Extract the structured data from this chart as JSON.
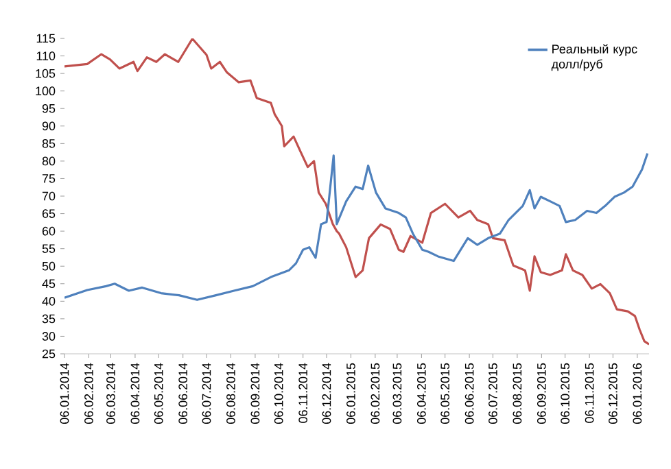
{
  "chart_data": {
    "type": "line",
    "legend": "top right",
    "grid": false,
    "marker": "none",
    "line_style": "solid",
    "ylim": [
      25,
      115
    ],
    "yticks": [
      25,
      30,
      35,
      40,
      45,
      50,
      55,
      60,
      65,
      70,
      75,
      80,
      85,
      90,
      95,
      100,
      105,
      110,
      115
    ],
    "xlim": [
      "2014-01-06",
      "2016-01-21"
    ],
    "xticks": [
      {
        "value": "2014-01-06",
        "label": "06.01.2014"
      },
      {
        "value": "2014-02-06",
        "label": "06.02.2014"
      },
      {
        "value": "2014-03-06",
        "label": "06.03.2014"
      },
      {
        "value": "2014-04-06",
        "label": "06.04.2014"
      },
      {
        "value": "2014-05-06",
        "label": "06.05.2014"
      },
      {
        "value": "2014-06-06",
        "label": "06.06.2014"
      },
      {
        "value": "2014-07-06",
        "label": "06.07.2014"
      },
      {
        "value": "2014-08-06",
        "label": "06.08.2014"
      },
      {
        "value": "2014-09-06",
        "label": "06.09.2014"
      },
      {
        "value": "2014-10-06",
        "label": "06.10.2014"
      },
      {
        "value": "2014-11-06",
        "label": "06.11.2014"
      },
      {
        "value": "2014-12-06",
        "label": "06.12.2014"
      },
      {
        "value": "2015-01-06",
        "label": "06.01.2015"
      },
      {
        "value": "2015-02-06",
        "label": "06.02.2015"
      },
      {
        "value": "2015-03-06",
        "label": "06.03.2015"
      },
      {
        "value": "2015-04-06",
        "label": "06.04.2015"
      },
      {
        "value": "2015-05-06",
        "label": "06.05.2015"
      },
      {
        "value": "2015-06-06",
        "label": "06.06.2015"
      },
      {
        "value": "2015-07-06",
        "label": "06.07.2015"
      },
      {
        "value": "2015-08-06",
        "label": "06.08.2015"
      },
      {
        "value": "2015-09-06",
        "label": "06.09.2015"
      },
      {
        "value": "2015-10-06",
        "label": "06.10.2015"
      },
      {
        "value": "2015-11-06",
        "label": "06.11.2015"
      },
      {
        "value": "2015-12-06",
        "label": "06.12.2015"
      },
      {
        "value": "2016-01-06",
        "label": "06.01.2016"
      }
    ],
    "series": [
      {
        "color": "#c0504d",
        "x": [
          "2014-01-06",
          "2014-02-04",
          "2014-02-22",
          "2014-03-05",
          "2014-03-17",
          "2014-04-04",
          "2014-04-09",
          "2014-04-21",
          "2014-05-03",
          "2014-05-14",
          "2014-05-31",
          "2014-06-18",
          "2014-07-06",
          "2014-07-12",
          "2014-07-23",
          "2014-08-01",
          "2014-08-16",
          "2014-08-31",
          "2014-09-08",
          "2014-09-26",
          "2014-10-01",
          "2014-10-10",
          "2014-10-13",
          "2014-10-25",
          "2014-11-03",
          "2014-11-12",
          "2014-11-20",
          "2014-11-26",
          "2014-12-05",
          "2014-12-14",
          "2014-12-19",
          "2014-12-22",
          "2014-12-31",
          "2015-01-12",
          "2015-01-21",
          "2015-01-29",
          "2015-02-13",
          "2015-02-25",
          "2015-03-08",
          "2015-03-14",
          "2015-03-23",
          "2015-04-07",
          "2015-04-18",
          "2015-05-06",
          "2015-05-23",
          "2015-06-07",
          "2015-06-16",
          "2015-06-30",
          "2015-07-06",
          "2015-07-21",
          "2015-08-01",
          "2015-08-16",
          "2015-08-22",
          "2015-08-28",
          "2015-09-05",
          "2015-09-17",
          "2015-10-02",
          "2015-10-07",
          "2015-10-16",
          "2015-10-28",
          "2015-11-09",
          "2015-11-20",
          "2015-12-02",
          "2015-12-11",
          "2015-12-25",
          "2016-01-03",
          "2016-01-09",
          "2016-01-15",
          "2016-01-21"
        ],
        "values": [
          107,
          107.7,
          110.5,
          109,
          106.4,
          108.3,
          105.7,
          109.6,
          108.3,
          110.5,
          108.3,
          114.9,
          110.3,
          106.4,
          108.3,
          105.3,
          102.5,
          103,
          98,
          96.6,
          93.3,
          90,
          84.2,
          87,
          82.6,
          78.3,
          80,
          71,
          67.8,
          62,
          60,
          59.3,
          55.4,
          46.9,
          48.8,
          58,
          61.9,
          60.6,
          54.7,
          54.1,
          58.6,
          56.7,
          65.2,
          67.8,
          63.9,
          65.8,
          63.2,
          62,
          58,
          57.4,
          50.2,
          48.8,
          43,
          52.8,
          48.3,
          47.5,
          48.8,
          53.4,
          48.8,
          47.5,
          43.6,
          44.9,
          42.3,
          37.7,
          37.1,
          35.8,
          31.9,
          28.6,
          27.7
        ]
      },
      {
        "name": "Реальный курс долл/руб",
        "color": "#4f81bd",
        "x": [
          "2014-01-06",
          "2014-02-04",
          "2014-02-28",
          "2014-03-11",
          "2014-03-29",
          "2014-04-15",
          "2014-05-09",
          "2014-06-01",
          "2014-06-24",
          "2014-07-18",
          "2014-08-10",
          "2014-09-03",
          "2014-09-26",
          "2014-10-19",
          "2014-10-28",
          "2014-11-06",
          "2014-11-14",
          "2014-11-22",
          "2014-11-29",
          "2014-12-06",
          "2014-12-15",
          "2014-12-19",
          "2014-12-31",
          "2015-01-12",
          "2015-01-21",
          "2015-01-28",
          "2015-02-07",
          "2015-02-19",
          "2015-03-08",
          "2015-03-17",
          "2015-03-26",
          "2015-04-07",
          "2015-04-15",
          "2015-04-27",
          "2015-05-17",
          "2015-06-04",
          "2015-06-16",
          "2015-06-30",
          "2015-07-15",
          "2015-07-26",
          "2015-08-13",
          "2015-08-22",
          "2015-08-28",
          "2015-09-05",
          "2015-09-17",
          "2015-09-29",
          "2015-10-07",
          "2015-10-19",
          "2015-11-03",
          "2015-11-15",
          "2015-11-26",
          "2015-12-08",
          "2015-12-20",
          "2015-12-31",
          "2016-01-12",
          "2016-01-19"
        ],
        "values": [
          41,
          43.2,
          44.3,
          45,
          43,
          43.9,
          42.3,
          41.7,
          40.4,
          41.7,
          43,
          44.3,
          46.9,
          48.8,
          50.8,
          54.7,
          55.4,
          52.4,
          62,
          62.6,
          81.6,
          62,
          68.5,
          72.7,
          72,
          78.7,
          71,
          66.5,
          65.2,
          63.9,
          59.3,
          54.7,
          54.1,
          52.8,
          51.5,
          58,
          56.1,
          58,
          59.3,
          63.2,
          67.2,
          71.7,
          66.5,
          69.8,
          68.5,
          67.2,
          62.6,
          63.2,
          65.8,
          65.2,
          67.2,
          69.8,
          71,
          72.7,
          77.6,
          82.2
        ]
      }
    ]
  }
}
